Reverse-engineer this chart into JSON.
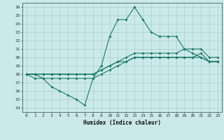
{
  "xlabel": "Humidex (Indice chaleur)",
  "bg_color": "#cce9e9",
  "grid_color": "#aad4d4",
  "line_color": "#1a7a6a",
  "xlim": [
    -0.5,
    23.5
  ],
  "ylim": [
    13.5,
    26.5
  ],
  "xticks": [
    0,
    1,
    2,
    3,
    4,
    5,
    6,
    7,
    8,
    9,
    10,
    11,
    12,
    13,
    14,
    15,
    16,
    17,
    18,
    19,
    20,
    21,
    22,
    23
  ],
  "yticks": [
    14,
    15,
    16,
    17,
    18,
    19,
    20,
    21,
    22,
    23,
    24,
    25,
    26
  ],
  "series": [
    {
      "x": [
        0,
        1,
        2,
        3,
        4,
        5,
        6,
        7,
        8,
        9,
        10,
        11,
        12,
        13,
        14,
        15,
        16,
        17,
        18,
        19,
        20,
        21,
        22,
        23
      ],
      "y": [
        18,
        18,
        17.5,
        16.5,
        16,
        15.5,
        15,
        14.3,
        17.5,
        19,
        22.5,
        24.5,
        24.5,
        26,
        24.5,
        23,
        22.5,
        22.5,
        22.5,
        21,
        20.5,
        20,
        19.5,
        19.5
      ]
    },
    {
      "x": [
        0,
        1,
        2,
        3,
        4,
        5,
        6,
        7,
        8,
        9,
        10,
        11,
        12,
        13,
        14,
        15,
        16,
        17,
        18,
        19,
        20,
        21,
        22,
        23
      ],
      "y": [
        18,
        18,
        18,
        18,
        18,
        18,
        18,
        18,
        18,
        18.5,
        19,
        19.5,
        19.5,
        20,
        20,
        20,
        20,
        20,
        20,
        20,
        20,
        20.5,
        19.5,
        19.5
      ]
    },
    {
      "x": [
        0,
        1,
        2,
        3,
        4,
        5,
        6,
        7,
        8,
        9,
        10,
        11,
        12,
        13,
        14,
        15,
        16,
        17,
        18,
        19,
        20,
        21,
        22,
        23
      ],
      "y": [
        18,
        18,
        18,
        18,
        18,
        18,
        18,
        18,
        18,
        18.5,
        19,
        19.5,
        20,
        20.5,
        20.5,
        20.5,
        20.5,
        20.5,
        20.5,
        21,
        21,
        21,
        20,
        20
      ]
    },
    {
      "x": [
        0,
        1,
        2,
        3,
        4,
        5,
        6,
        7,
        8,
        9,
        10,
        11,
        12,
        13,
        14,
        15,
        16,
        17,
        18,
        19,
        20,
        21,
        22,
        23
      ],
      "y": [
        18,
        17.5,
        17.5,
        17.5,
        17.5,
        17.5,
        17.5,
        17.5,
        17.5,
        18,
        18.5,
        19,
        19.5,
        20,
        20,
        20,
        20,
        20,
        20,
        20,
        20,
        20,
        19.5,
        19.5
      ]
    }
  ]
}
